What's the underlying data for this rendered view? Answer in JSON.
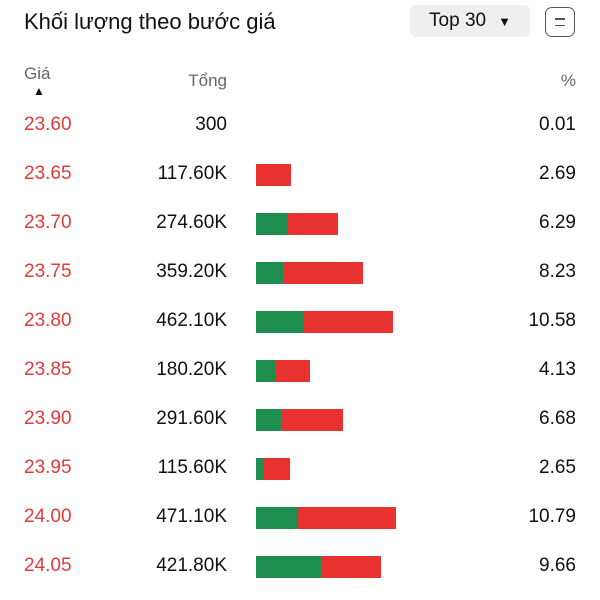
{
  "header": {
    "title": "Khối lượng theo bước giá",
    "top_select": "Top 30",
    "menu_icon": "menu-icon"
  },
  "columns": {
    "price": "Giá",
    "sort_indicator": "▲",
    "total": "Tổng",
    "percent": "%"
  },
  "colors": {
    "price": "#e23a3a",
    "buy": "#1e8e4e",
    "sell": "#e8322f"
  },
  "rows": [
    {
      "price": "23.60",
      "total": "300",
      "percent": "0.01",
      "buy_ratio": 0.0,
      "sell_ratio": 0.0
    },
    {
      "price": "23.65",
      "total": "117.60K",
      "percent": "2.69",
      "buy_ratio": 0.0,
      "sell_ratio": 1.0
    },
    {
      "price": "23.70",
      "total": "274.60K",
      "percent": "6.29",
      "buy_ratio": 0.38,
      "sell_ratio": 0.62
    },
    {
      "price": "23.75",
      "total": "359.20K",
      "percent": "8.23",
      "buy_ratio": 0.25,
      "sell_ratio": 0.75
    },
    {
      "price": "23.80",
      "total": "462.10K",
      "percent": "10.58",
      "buy_ratio": 0.34,
      "sell_ratio": 0.66
    },
    {
      "price": "23.85",
      "total": "180.20K",
      "percent": "4.13",
      "buy_ratio": 0.35,
      "sell_ratio": 0.65
    },
    {
      "price": "23.90",
      "total": "291.60K",
      "percent": "6.68",
      "buy_ratio": 0.29,
      "sell_ratio": 0.71
    },
    {
      "price": "23.95",
      "total": "115.60K",
      "percent": "2.65",
      "buy_ratio": 0.22,
      "sell_ratio": 0.78
    },
    {
      "price": "24.00",
      "total": "471.10K",
      "percent": "10.79",
      "buy_ratio": 0.3,
      "sell_ratio": 0.7
    },
    {
      "price": "24.05",
      "total": "421.80K",
      "percent": "9.66",
      "buy_ratio": 0.52,
      "sell_ratio": 0.48
    }
  ]
}
